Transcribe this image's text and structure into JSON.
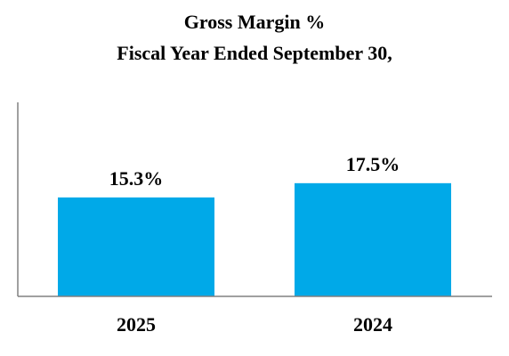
{
  "chart_data": {
    "type": "bar",
    "title": "Gross Margin %",
    "subtitle": "Fiscal Year Ended September 30,",
    "categories": [
      "2025",
      "2024"
    ],
    "values": [
      15.3,
      17.5
    ],
    "value_labels": [
      "15.3%",
      "17.5%"
    ],
    "ylim": [
      0,
      30
    ],
    "grid": false,
    "bar_color": "#00a9e8",
    "axis_color": "#808080"
  }
}
